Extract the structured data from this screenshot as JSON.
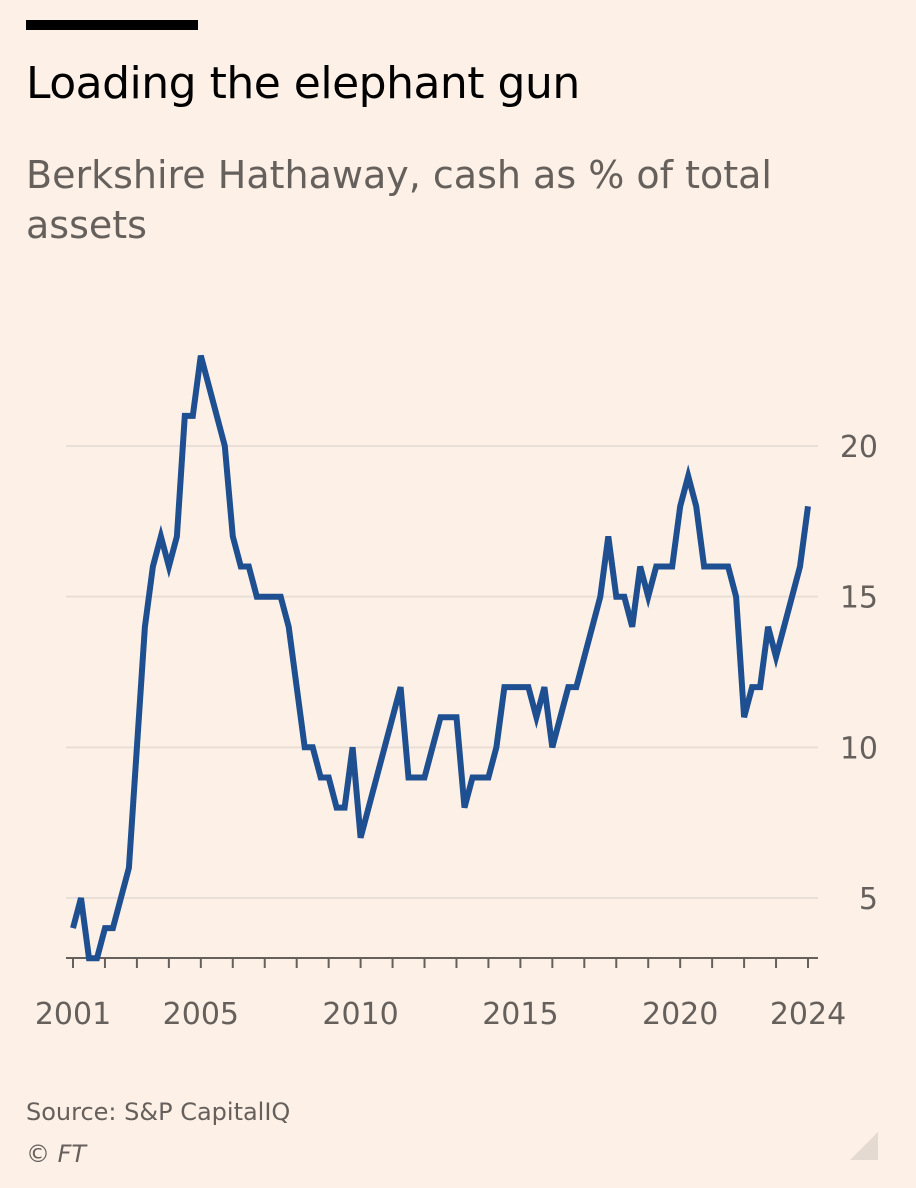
{
  "header": {
    "title": "Loading the elephant gun",
    "subtitle": "Berkshire Hathaway, cash as % of total assets"
  },
  "footer": {
    "source": "Source: S&P CapitalIQ",
    "credit": "© FT"
  },
  "colors": {
    "background": "#fdf0e6",
    "line": "#1e4f91",
    "text_muted": "#66605c",
    "gridline": "#eadfd6",
    "axis": "#66605c"
  },
  "chart_data": {
    "type": "line",
    "title": "Loading the elephant gun",
    "subtitle": "Berkshire Hathaway, cash as % of total assets",
    "xlabel": "",
    "ylabel": "",
    "xlim": [
      2001,
      2024
    ],
    "ylim": [
      3,
      24
    ],
    "x_ticks": [
      2001,
      2002,
      2003,
      2004,
      2005,
      2006,
      2007,
      2008,
      2009,
      2010,
      2011,
      2012,
      2013,
      2014,
      2015,
      2016,
      2017,
      2018,
      2019,
      2020,
      2021,
      2022,
      2023,
      2024
    ],
    "x_tick_labels": [
      "2001",
      "2005",
      "2010",
      "2015",
      "2020",
      "2024"
    ],
    "x_tick_label_values": [
      2001,
      2005,
      2010,
      2015,
      2020,
      2024
    ],
    "y_ticks": [
      5,
      10,
      15,
      20
    ],
    "y_tick_labels": [
      "5",
      "10",
      "15",
      "20"
    ],
    "grid": true,
    "y_axis_side": "right",
    "series": [
      {
        "name": "Cash as % of total assets",
        "points": [
          [
            2001.0,
            4
          ],
          [
            2001.25,
            5
          ],
          [
            2001.5,
            3
          ],
          [
            2001.75,
            3
          ],
          [
            2002.0,
            4
          ],
          [
            2002.25,
            4
          ],
          [
            2002.5,
            5
          ],
          [
            2002.75,
            6
          ],
          [
            2003.0,
            10
          ],
          [
            2003.25,
            14
          ],
          [
            2003.5,
            16
          ],
          [
            2003.75,
            17
          ],
          [
            2004.0,
            16
          ],
          [
            2004.25,
            17
          ],
          [
            2004.5,
            21
          ],
          [
            2004.75,
            21
          ],
          [
            2005.0,
            23
          ],
          [
            2005.25,
            22
          ],
          [
            2005.5,
            21
          ],
          [
            2005.75,
            20
          ],
          [
            2006.0,
            17
          ],
          [
            2006.25,
            16
          ],
          [
            2006.5,
            16
          ],
          [
            2006.75,
            15
          ],
          [
            2007.0,
            15
          ],
          [
            2007.25,
            15
          ],
          [
            2007.5,
            15
          ],
          [
            2007.75,
            14
          ],
          [
            2008.0,
            12
          ],
          [
            2008.25,
            10
          ],
          [
            2008.5,
            10
          ],
          [
            2008.75,
            9
          ],
          [
            2009.0,
            9
          ],
          [
            2009.25,
            8
          ],
          [
            2009.5,
            8
          ],
          [
            2009.75,
            10
          ],
          [
            2010.0,
            7
          ],
          [
            2010.25,
            8
          ],
          [
            2010.5,
            9
          ],
          [
            2010.75,
            10
          ],
          [
            2011.0,
            11
          ],
          [
            2011.25,
            12
          ],
          [
            2011.5,
            9
          ],
          [
            2011.75,
            9
          ],
          [
            2012.0,
            9
          ],
          [
            2012.25,
            10
          ],
          [
            2012.5,
            11
          ],
          [
            2012.75,
            11
          ],
          [
            2013.0,
            11
          ],
          [
            2013.25,
            8
          ],
          [
            2013.5,
            9
          ],
          [
            2013.75,
            9
          ],
          [
            2014.0,
            9
          ],
          [
            2014.25,
            10
          ],
          [
            2014.5,
            12
          ],
          [
            2014.75,
            12
          ],
          [
            2015.0,
            12
          ],
          [
            2015.25,
            12
          ],
          [
            2015.5,
            11
          ],
          [
            2015.75,
            12
          ],
          [
            2016.0,
            10
          ],
          [
            2016.25,
            11
          ],
          [
            2016.5,
            12
          ],
          [
            2016.75,
            12
          ],
          [
            2017.0,
            13
          ],
          [
            2017.25,
            14
          ],
          [
            2017.5,
            15
          ],
          [
            2017.75,
            17
          ],
          [
            2018.0,
            15
          ],
          [
            2018.25,
            15
          ],
          [
            2018.5,
            14
          ],
          [
            2018.75,
            16
          ],
          [
            2019.0,
            15
          ],
          [
            2019.25,
            16
          ],
          [
            2019.5,
            16
          ],
          [
            2019.75,
            16
          ],
          [
            2020.0,
            18
          ],
          [
            2020.25,
            19
          ],
          [
            2020.5,
            18
          ],
          [
            2020.75,
            16
          ],
          [
            2021.0,
            16
          ],
          [
            2021.25,
            16
          ],
          [
            2021.5,
            16
          ],
          [
            2021.75,
            15
          ],
          [
            2022.0,
            11
          ],
          [
            2022.25,
            12
          ],
          [
            2022.5,
            12
          ],
          [
            2022.75,
            14
          ],
          [
            2023.0,
            13
          ],
          [
            2023.25,
            14
          ],
          [
            2023.5,
            15
          ],
          [
            2023.75,
            16
          ],
          [
            2024.0,
            18
          ]
        ]
      }
    ]
  }
}
